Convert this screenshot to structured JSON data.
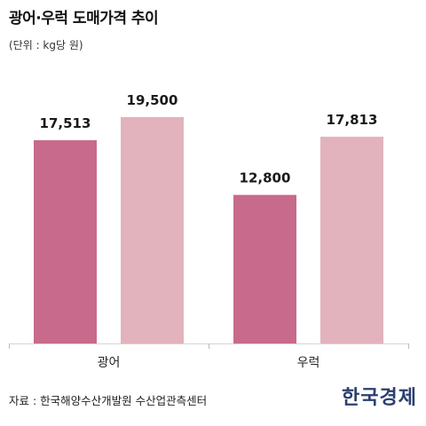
{
  "header": {
    "title": "광어·우럭 도매가격 추이",
    "unit": "(단위 : kg당 원)"
  },
  "footer": {
    "source": "자료 : 한국해양수산개발원 수산업관측센터",
    "logo": "한국경제"
  },
  "colors": {
    "series_dark": "#c86a8b",
    "series_light": "#e2b2bd"
  },
  "chart_data": {
    "type": "bar",
    "title": "광어·우럭 도매가격 추이",
    "ylabel": "(단위 : kg당 원)",
    "categories": [
      "광어",
      "우럭"
    ],
    "series": [
      {
        "values": [
          17513,
          12800
        ],
        "labels": [
          "17,513",
          "12,800"
        ]
      },
      {
        "values": [
          19500,
          17813
        ],
        "labels": [
          "19,500",
          "17,813"
        ]
      }
    ],
    "ylim": [
      0,
      19500
    ],
    "grid": false,
    "legend": "none"
  }
}
